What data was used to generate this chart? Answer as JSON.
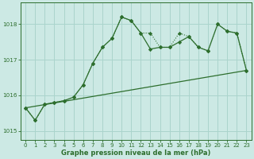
{
  "xlabel": "Graphe pression niveau de la mer (hPa)",
  "xlim": [
    -0.5,
    23.5
  ],
  "ylim": [
    1014.75,
    1018.6
  ],
  "yticks": [
    1015,
    1016,
    1017,
    1018
  ],
  "xticks": [
    0,
    1,
    2,
    3,
    4,
    5,
    6,
    7,
    8,
    9,
    10,
    11,
    12,
    13,
    14,
    15,
    16,
    17,
    18,
    19,
    20,
    21,
    22,
    23
  ],
  "bg_color": "#cce9e4",
  "grid_color": "#aad4cc",
  "line_color": "#2d6e2d",
  "line_dotted": {
    "x": [
      0,
      1,
      2,
      3,
      4,
      5,
      6,
      7,
      8,
      9,
      10,
      11,
      12,
      13,
      14,
      15,
      16,
      17,
      18,
      19,
      20,
      21,
      22,
      23
    ],
    "y": [
      1015.65,
      1015.3,
      1015.75,
      1015.8,
      1015.85,
      1015.95,
      1016.3,
      1016.9,
      1017.35,
      1017.6,
      1018.2,
      1018.1,
      1017.75,
      1017.75,
      1017.35,
      1017.35,
      1017.75,
      1017.65,
      1017.35,
      1017.25,
      1018.0,
      1017.8,
      1017.75,
      1016.7
    ]
  },
  "line_solid": {
    "x": [
      0,
      1,
      2,
      3,
      4,
      5,
      6,
      7,
      8,
      9,
      10,
      11,
      12,
      13,
      14,
      15,
      16,
      17,
      18,
      19,
      20,
      21,
      22,
      23
    ],
    "y": [
      1015.65,
      1015.3,
      1015.75,
      1015.8,
      1015.85,
      1015.95,
      1016.3,
      1016.9,
      1017.35,
      1017.6,
      1018.2,
      1018.1,
      1017.75,
      1017.3,
      1017.35,
      1017.35,
      1017.5,
      1017.65,
      1017.35,
      1017.25,
      1018.0,
      1017.8,
      1017.75,
      1016.7
    ]
  },
  "line_straight": {
    "x": [
      0,
      23
    ],
    "y": [
      1015.65,
      1016.7
    ]
  }
}
